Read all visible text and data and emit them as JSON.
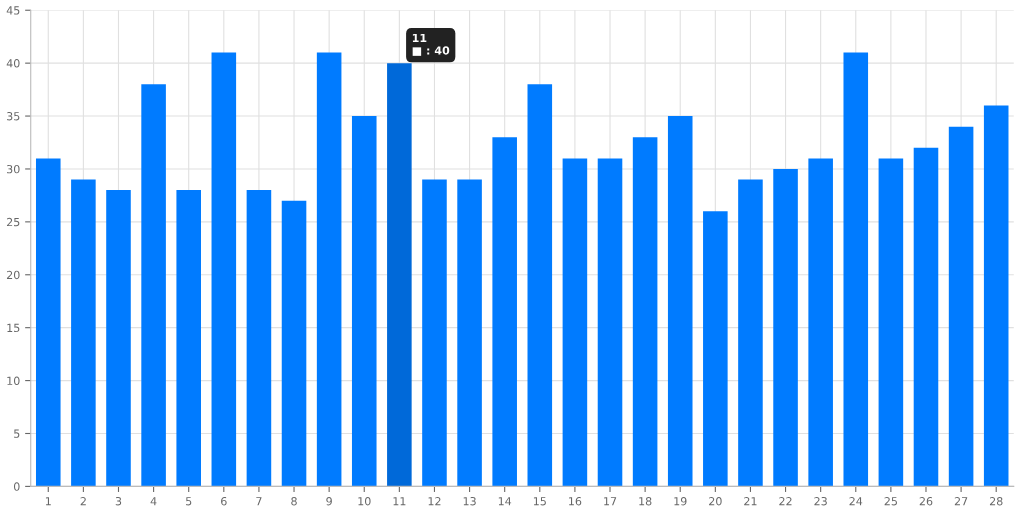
{
  "chart_data": {
    "type": "bar",
    "categories": [
      "1",
      "2",
      "3",
      "4",
      "5",
      "6",
      "7",
      "8",
      "9",
      "10",
      "11",
      "12",
      "13",
      "14",
      "15",
      "16",
      "17",
      "18",
      "19",
      "20",
      "21",
      "22",
      "23",
      "24",
      "25",
      "26",
      "27",
      "28"
    ],
    "values": [
      31,
      29,
      28,
      38,
      28,
      41,
      28,
      27,
      41,
      35,
      40,
      29,
      29,
      33,
      38,
      31,
      31,
      33,
      35,
      26,
      29,
      30,
      31,
      41,
      31,
      32,
      34,
      36
    ],
    "colors": [
      "#007bff",
      "#007bff",
      "#007bff",
      "#007bff",
      "#007bff",
      "#007bff",
      "#007bff",
      "#007bff",
      "#007bff",
      "#007bff",
      "#0069d9",
      "#007bff",
      "#007bff",
      "#007bff",
      "#007bff",
      "#007bff",
      "#007bff",
      "#007bff",
      "#007bff",
      "#007bff",
      "#007bff",
      "#007bff",
      "#007bff",
      "#007bff",
      "#007bff",
      "#007bff",
      "#007bff",
      "#007bff"
    ],
    "ylim": [
      0,
      45
    ],
    "yticks": [
      0,
      5,
      10,
      15,
      20,
      25,
      30,
      35,
      40,
      45
    ],
    "grid": true,
    "annotations": [
      {
        "text": "11\n■ : 40",
        "x": "11",
        "y": 40
      }
    ]
  }
}
